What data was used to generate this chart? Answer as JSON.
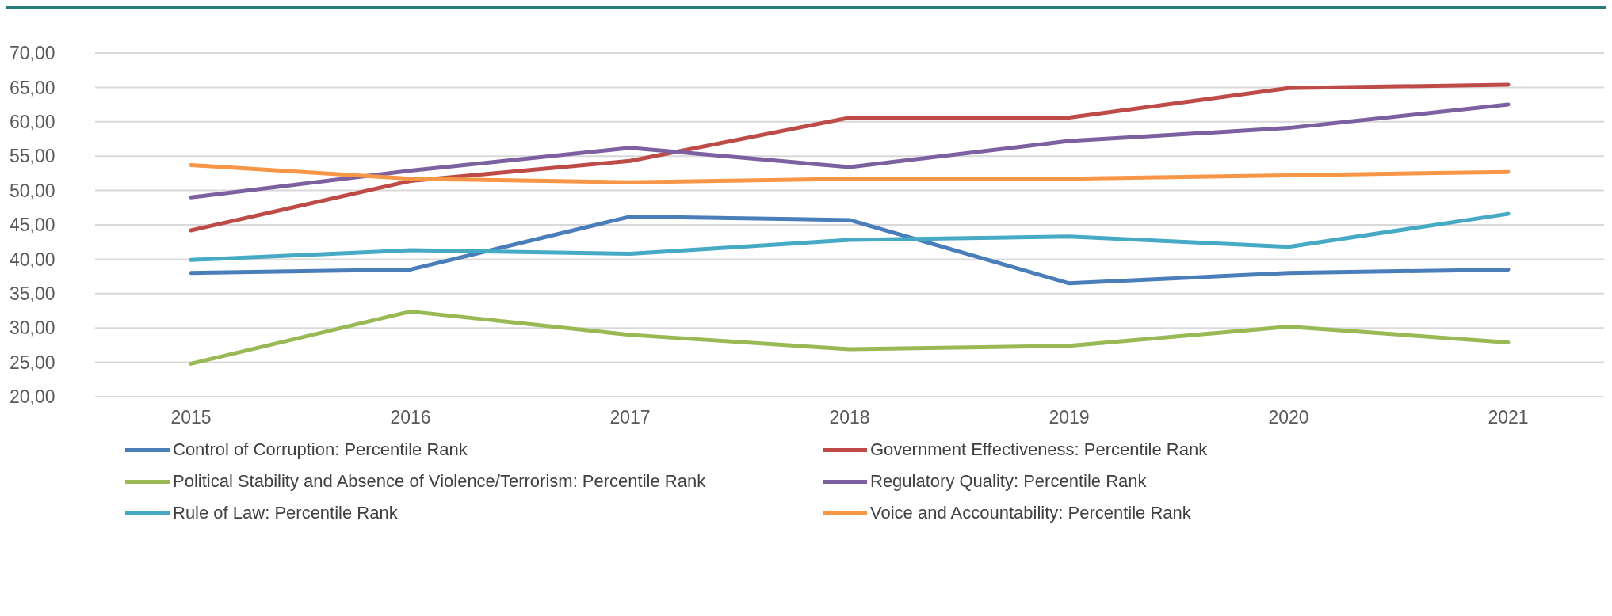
{
  "chart_data": {
    "type": "line",
    "categories": [
      "2015",
      "2016",
      "2017",
      "2018",
      "2019",
      "2020",
      "2021"
    ],
    "series": [
      {
        "name": "Control of Corruption: Percentile Rank",
        "color": "#4a7ebb",
        "values": [
          38.0,
          38.5,
          46.2,
          45.7,
          36.5,
          38.0,
          38.5
        ]
      },
      {
        "name": "Government Effectiveness: Percentile Rank",
        "color": "#be4b48",
        "values": [
          44.2,
          51.4,
          54.3,
          60.6,
          60.6,
          64.9,
          65.4
        ]
      },
      {
        "name": "Political Stability and Absence of Violence/Terrorism: Percentile Rank",
        "color": "#98b954",
        "values": [
          24.8,
          32.4,
          29.0,
          26.9,
          27.4,
          30.2,
          27.9
        ]
      },
      {
        "name": "Regulatory Quality: Percentile Rank",
        "color": "#7d60a0",
        "values": [
          49.0,
          52.9,
          56.2,
          53.4,
          57.2,
          59.1,
          62.5
        ]
      },
      {
        "name": "Rule of Law: Percentile Rank",
        "color": "#46aac5",
        "values": [
          39.9,
          41.3,
          40.8,
          42.8,
          43.3,
          41.8,
          46.6
        ]
      },
      {
        "name": "Voice and Accountability: Percentile Rank",
        "color": "#f79646",
        "values": [
          53.7,
          51.7,
          51.2,
          51.7,
          51.7,
          52.2,
          52.7
        ]
      }
    ],
    "ylim": [
      20,
      70
    ],
    "yticks": [
      {
        "value": 20,
        "label": "20,00"
      },
      {
        "value": 25,
        "label": "25,00"
      },
      {
        "value": 30,
        "label": "30,00"
      },
      {
        "value": 35,
        "label": "35,00"
      },
      {
        "value": 40,
        "label": "40,00"
      },
      {
        "value": 45,
        "label": "45,00"
      },
      {
        "value": 50,
        "label": "50,00"
      },
      {
        "value": 55,
        "label": "55,00"
      },
      {
        "value": 60,
        "label": "60,00"
      },
      {
        "value": 65,
        "label": "65,00"
      },
      {
        "value": 70,
        "label": "70,00"
      }
    ],
    "grid": "y",
    "legend": "bottom",
    "marker": "none",
    "line_style": "solid"
  }
}
